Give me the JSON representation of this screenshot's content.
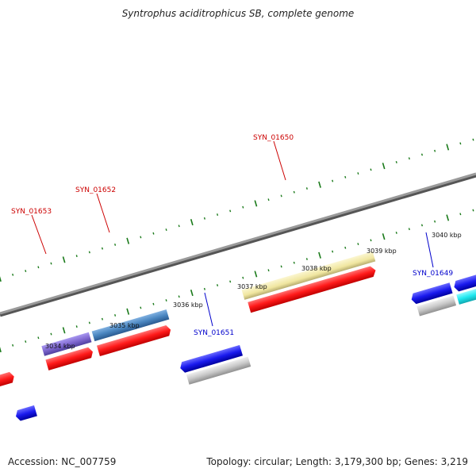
{
  "title": "Syntrophus aciditrophicus SB, complete genome",
  "footer": {
    "accession": "Accession: NC_007759",
    "summary": "Topology: circular; Length: 3,179,300 bp; Genes: 3,219"
  },
  "colors": {
    "backbone": "#808080",
    "tick_mark": "#1a7a1a",
    "forward_label": "#cc0000",
    "reverse_label": "#0000cc",
    "cds_red": "#ff1a1a",
    "cds_blue": "#1a1aee",
    "cds_gray": "#c8c8c8",
    "cds_yellow": "#f0e6a0",
    "cds_steelblue": "#4a86c0",
    "cds_purple": "#8068d0",
    "cds_cyan": "#20e8f0"
  },
  "kbp_labels": [
    "3034 kbp",
    "3035 kbp",
    "3036 kbp",
    "3037 kbp",
    "3038 kbp",
    "3039 kbp",
    "3040 kbp"
  ],
  "gene_labels": {
    "forward": [
      "SYN_01653",
      "SYN_01652",
      "SYN_01650"
    ],
    "reverse": [
      "SYN_01651",
      "SYN_01649"
    ]
  }
}
